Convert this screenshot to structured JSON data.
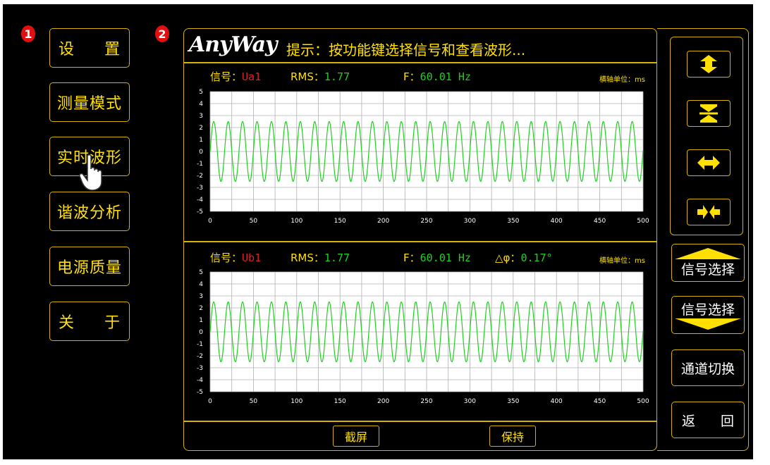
{
  "markers": [
    "1",
    "2"
  ],
  "left_menu": [
    {
      "label_a": "设",
      "label_b": "置"
    },
    {
      "label": "测量模式"
    },
    {
      "label": "实时波形"
    },
    {
      "label": "谐波分析"
    },
    {
      "label": "电源质量"
    },
    {
      "label_a": "关",
      "label_b": "于"
    }
  ],
  "header": {
    "logo": "AnyWay",
    "tip": "提示：按功能键选择信号和查看波形..."
  },
  "chart1": {
    "signal_label": "信号：",
    "signal_value": "Ua1",
    "rms_label": "RMS：",
    "rms_value": "1.77",
    "f_label": "F：",
    "f_value": "60.01 Hz",
    "unit_label": "横轴单位：ms"
  },
  "chart2": {
    "signal_label": "信号：",
    "signal_value": "Ub1",
    "rms_label": "RMS：",
    "rms_value": "1.77",
    "f_label": "F：",
    "f_value": "60.01 Hz",
    "phase_label": "△φ：",
    "phase_value": "0.17°",
    "unit_label": "横轴单位：ms"
  },
  "right_buttons": {
    "signal_up": "信号选择",
    "signal_down": "信号选择",
    "channel_switch": "通道切换",
    "back_a": "返",
    "back_b": "回"
  },
  "bottom_buttons": {
    "screenshot": "截屏",
    "hold": "保持"
  },
  "icons": [
    "vertical-expand-icon",
    "vertical-compress-icon",
    "horizontal-expand-icon",
    "horizontal-compress-icon",
    "hand-cursor-icon",
    "up-arrow-icon",
    "down-arrow-icon"
  ],
  "colors": {
    "accent": "#ffe000",
    "border": "#d8b200",
    "wave": "#20d020",
    "signal": "#e02020",
    "background": "#000000"
  },
  "chart_data": [
    {
      "type": "line",
      "series": [
        {
          "name": "Ua1",
          "amplitude": 2.5,
          "frequency_hz": 60.01
        }
      ],
      "xlim": [
        0,
        500
      ],
      "ylim": [
        -5,
        5
      ],
      "x_ticks": [
        0,
        50,
        100,
        150,
        200,
        250,
        300,
        350,
        400,
        450,
        500
      ],
      "y_ticks": [
        5,
        4,
        3,
        2,
        1,
        0,
        -1,
        -2,
        -3,
        -4,
        -5
      ],
      "grid": true
    },
    {
      "type": "line",
      "series": [
        {
          "name": "Ub1",
          "amplitude": 2.5,
          "frequency_hz": 60.01,
          "phase_deg": 0.17
        }
      ],
      "xlim": [
        0,
        500
      ],
      "ylim": [
        -5,
        5
      ],
      "x_ticks": [
        0,
        50,
        100,
        150,
        200,
        250,
        300,
        350,
        400,
        450,
        500
      ],
      "y_ticks": [
        5,
        4,
        3,
        2,
        1,
        0,
        -1,
        -2,
        -3,
        -4,
        -5
      ],
      "grid": true
    }
  ]
}
